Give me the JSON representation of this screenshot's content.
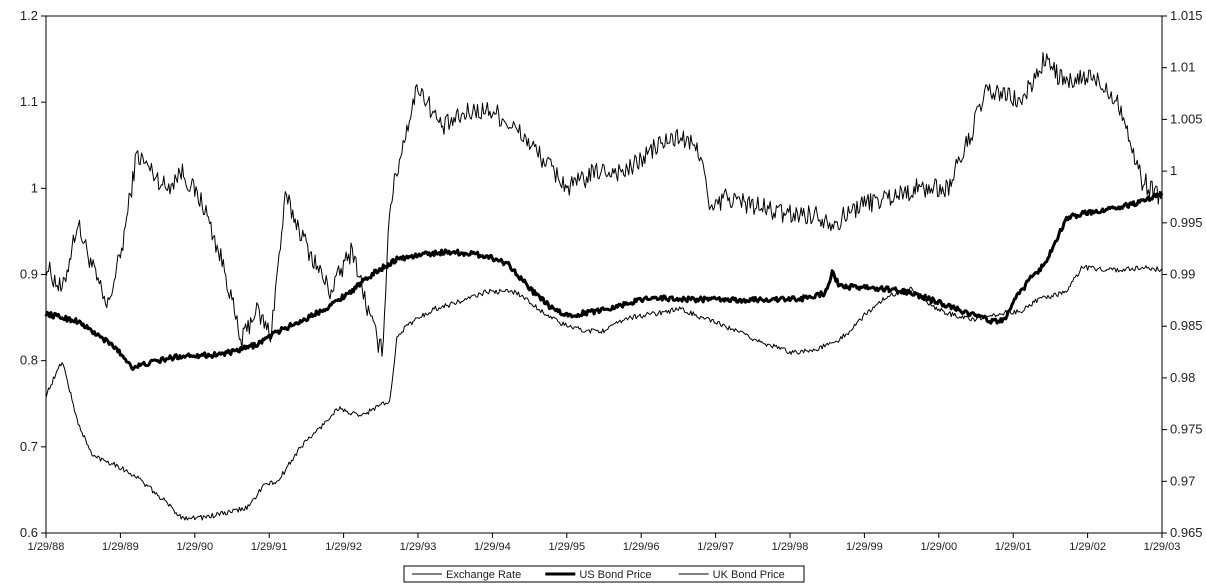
{
  "chart_data": {
    "type": "line",
    "title": "",
    "xlabel": "",
    "ylabel": "",
    "y_left": {
      "min": 0.6,
      "max": 1.2,
      "ticks": [
        "0.6",
        "0.7",
        "0.8",
        "0.9",
        "1",
        "1.1",
        "1.2"
      ]
    },
    "y_right": {
      "min": 0.965,
      "max": 1.015,
      "ticks": [
        "0.965",
        "0.97",
        "0.975",
        "0.98",
        "0.985",
        "0.99",
        "0.995",
        "1",
        "1.005",
        "1.01",
        "1.015"
      ]
    },
    "x_range": [
      1988.08,
      2003.08
    ],
    "x_ticks": [
      "1/29/88",
      "1/29/89",
      "1/29/90",
      "1/29/91",
      "1/29/92",
      "1/29/93",
      "1/29/94",
      "1/29/95",
      "1/29/96",
      "1/29/97",
      "1/29/98",
      "1/29/99",
      "1/29/00",
      "1/29/01",
      "1/29/02",
      "1/29/03"
    ],
    "grid": false,
    "legend_position": "bottom",
    "series": [
      {
        "name": "Exchange Rate",
        "axis": "left",
        "line_weight": "thin",
        "color": "#000000",
        "noise": 0.012,
        "x": [
          1988.08,
          1988.3,
          1988.5,
          1988.9,
          1989.1,
          1989.3,
          1989.7,
          1989.9,
          1990.2,
          1990.5,
          1990.7,
          1990.9,
          1991.1,
          1991.3,
          1991.6,
          1991.9,
          1992.2,
          1992.4,
          1992.55,
          1992.6,
          1992.7,
          1992.9,
          1993.08,
          1993.4,
          1993.8,
          1994.1,
          1994.5,
          1994.8,
          1995.1,
          1995.5,
          1995.9,
          1996.3,
          1996.6,
          1996.9,
          1997.0,
          1997.2,
          1997.6,
          1998.0,
          1998.4,
          1998.7,
          1999.0,
          1999.4,
          1999.8,
          2000.2,
          2000.5,
          2000.7,
          2000.9,
          2001.2,
          2001.5,
          2001.8,
          2002.1,
          2002.3,
          2002.5,
          2002.8,
          2003.08
        ],
        "y": [
          0.91,
          0.88,
          0.96,
          0.86,
          0.93,
          1.04,
          1.0,
          1.02,
          0.98,
          0.9,
          0.82,
          0.86,
          0.83,
          0.99,
          0.93,
          0.88,
          0.93,
          0.86,
          0.82,
          0.81,
          0.98,
          1.06,
          1.12,
          1.07,
          1.09,
          1.09,
          1.06,
          1.03,
          1.0,
          1.02,
          1.02,
          1.05,
          1.06,
          1.04,
          0.97,
          0.99,
          0.98,
          0.97,
          0.97,
          0.96,
          0.98,
          0.99,
          1.0,
          1.0,
          1.06,
          1.11,
          1.11,
          1.1,
          1.15,
          1.12,
          1.13,
          1.12,
          1.1,
          1.01,
          0.99
        ]
      },
      {
        "name": "US Bond Price",
        "axis": "right",
        "line_weight": "thick",
        "color": "#000000",
        "noise": 0.00025,
        "x": [
          1988.08,
          1988.5,
          1989.0,
          1989.25,
          1989.5,
          1989.8,
          1990.0,
          1990.3,
          1990.6,
          1990.9,
          1991.2,
          1991.6,
          1991.9,
          1992.2,
          1992.5,
          1992.8,
          1993.2,
          1993.5,
          1993.8,
          1994.0,
          1994.3,
          1994.6,
          1994.9,
          1995.1,
          1995.5,
          1995.9,
          1996.2,
          1996.6,
          1997.0,
          1997.4,
          1997.8,
          1998.2,
          1998.55,
          1998.65,
          1998.75,
          1999.0,
          1999.5,
          1999.8,
          2000.2,
          2000.5,
          2000.8,
          2000.95,
          2001.1,
          2001.3,
          2001.5,
          2001.6,
          2001.8,
          2002.1,
          2002.5,
          2002.8,
          2003.08
        ],
        "y": [
          0.9862,
          0.9855,
          0.983,
          0.981,
          0.9815,
          0.982,
          0.9822,
          0.9822,
          0.9825,
          0.9832,
          0.9845,
          0.9858,
          0.987,
          0.9885,
          0.9902,
          0.9915,
          0.992,
          0.9922,
          0.992,
          0.9918,
          0.991,
          0.9885,
          0.9866,
          0.986,
          0.9865,
          0.9872,
          0.9878,
          0.9876,
          0.9876,
          0.9875,
          0.9876,
          0.9876,
          0.9882,
          0.9902,
          0.9888,
          0.9888,
          0.9885,
          0.988,
          0.987,
          0.9862,
          0.9855,
          0.9855,
          0.9875,
          0.9895,
          0.991,
          0.9925,
          0.9955,
          0.996,
          0.9965,
          0.997,
          0.9978
        ]
      },
      {
        "name": "UK Bond Price",
        "axis": "left",
        "line_weight": "thin",
        "color": "#000000",
        "noise": 0.003,
        "x": [
          1988.08,
          1988.3,
          1988.5,
          1988.7,
          1989.0,
          1989.3,
          1989.5,
          1989.7,
          1989.9,
          1990.2,
          1990.6,
          1990.8,
          1991.0,
          1991.2,
          1991.5,
          1991.8,
          1992.0,
          1992.3,
          1992.6,
          1992.7,
          1992.8,
          1993.0,
          1993.3,
          1993.7,
          1994.0,
          1994.4,
          1994.7,
          1995.0,
          1995.3,
          1995.6,
          1995.9,
          1996.3,
          1996.6,
          1996.9,
          1997.2,
          1997.6,
          1997.9,
          1998.1,
          1998.4,
          1998.7,
          1998.9,
          1999.1,
          1999.4,
          1999.7,
          2000.0,
          2000.3,
          2000.6,
          2000.9,
          2001.2,
          2001.4,
          2001.6,
          2001.8,
          2002.0,
          2002.4,
          2002.8,
          2003.08
        ],
        "y": [
          0.76,
          0.8,
          0.73,
          0.69,
          0.68,
          0.665,
          0.65,
          0.635,
          0.618,
          0.618,
          0.625,
          0.63,
          0.655,
          0.66,
          0.7,
          0.725,
          0.745,
          0.735,
          0.75,
          0.75,
          0.83,
          0.845,
          0.86,
          0.87,
          0.88,
          0.88,
          0.86,
          0.843,
          0.835,
          0.835,
          0.85,
          0.855,
          0.86,
          0.85,
          0.84,
          0.825,
          0.815,
          0.81,
          0.812,
          0.822,
          0.835,
          0.855,
          0.875,
          0.885,
          0.862,
          0.852,
          0.848,
          0.855,
          0.858,
          0.87,
          0.875,
          0.88,
          0.908,
          0.905,
          0.908,
          0.906
        ]
      }
    ]
  }
}
